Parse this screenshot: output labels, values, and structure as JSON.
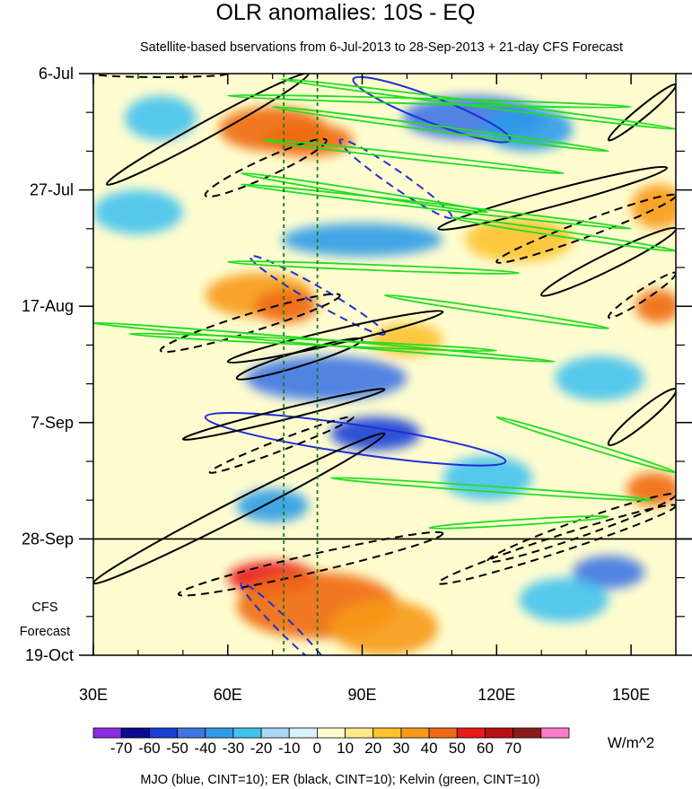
{
  "chart_data": {
    "type": "heatmap",
    "title": "OLR anomalies: 10S - EQ",
    "subtitle": "Satellite-based bservations from 6-Jul-2013 to 28-Sep-2013 + 21-day CFS Forecast",
    "x_axis": {
      "range": [
        30,
        160
      ],
      "ticks": [
        {
          "value": 30,
          "label": "30E"
        },
        {
          "value": 60,
          "label": "60E"
        },
        {
          "value": 90,
          "label": "90E"
        },
        {
          "value": 120,
          "label": "120E"
        },
        {
          "value": 150,
          "label": "150E"
        }
      ]
    },
    "y_axis": {
      "range_days": [
        0,
        105
      ],
      "ticks": [
        {
          "day": 0,
          "label": "6-Jul"
        },
        {
          "day": 21,
          "label": "27-Jul"
        },
        {
          "day": 42,
          "label": "17-Aug"
        },
        {
          "day": 63,
          "label": "7-Sep"
        },
        {
          "day": 84,
          "label": "28-Sep"
        },
        {
          "day": 105,
          "label": "19-Oct"
        }
      ]
    },
    "forecast_start_day": 84,
    "forecast_label_line1": "CFS",
    "forecast_label_line2": "Forecast",
    "reference_longitudes": [
      72.5,
      80
    ],
    "colorbar": {
      "labels": [
        "-70",
        "-60",
        "-50",
        "-40",
        "-30",
        "-20",
        "-10",
        "0",
        "10",
        "20",
        "30",
        "40",
        "50",
        "60",
        "70"
      ],
      "colors": [
        "#8a2be2",
        "#0b0b8f",
        "#1a3fd6",
        "#3f76e4",
        "#2f9be8",
        "#42c2f0",
        "#a9d9f6",
        "#d8f1fb",
        "#fffdd0",
        "#ffe98a",
        "#fcc22f",
        "#f79a1a",
        "#ef6a12",
        "#e81a1a",
        "#b81010",
        "#8c1a1a",
        "#ff7ac8"
      ],
      "units": "W/m^2"
    },
    "legend_text": "MJO (blue, CINT=10); ER (black, CINT=10); Kelvin (green, CINT=10)",
    "contour_sets": [
      {
        "name": "MJO",
        "color": "#1f2ed8",
        "cint": 10
      },
      {
        "name": "ER",
        "color": "#000000",
        "cint": 10
      },
      {
        "name": "Kelvin",
        "color": "#22dd22",
        "cint": 10
      }
    ],
    "anomaly_features": [
      {
        "lon": 70,
        "day": 10,
        "value": 45,
        "rx": 12,
        "rd": 4
      },
      {
        "lon": 78,
        "day": 12,
        "value": 40,
        "rx": 10,
        "rd": 3
      },
      {
        "lon": 67,
        "day": 40,
        "value": 35,
        "rx": 12,
        "rd": 4
      },
      {
        "lon": 73,
        "day": 42,
        "value": 45,
        "rx": 7,
        "rd": 3
      },
      {
        "lon": 70,
        "day": 91,
        "value": 55,
        "rx": 10,
        "rd": 3
      },
      {
        "lon": 80,
        "day": 96,
        "value": 40,
        "rx": 18,
        "rd": 6
      },
      {
        "lon": 95,
        "day": 100,
        "value": 32,
        "rx": 12,
        "rd": 5
      },
      {
        "lon": 156,
        "day": 24,
        "value": 35,
        "rx": 6,
        "rd": 4
      },
      {
        "lon": 156,
        "day": 42,
        "value": 40,
        "rx": 5,
        "rd": 3
      },
      {
        "lon": 155,
        "day": 75,
        "value": 45,
        "rx": 6,
        "rd": 3
      },
      {
        "lon": 125,
        "day": 30,
        "value": 25,
        "rx": 12,
        "rd": 4
      },
      {
        "lon": 100,
        "day": 48,
        "value": 25,
        "rx": 8,
        "rd": 3
      },
      {
        "lon": 90,
        "day": 30,
        "value": -40,
        "rx": 18,
        "rd": 3
      },
      {
        "lon": 115,
        "day": 8,
        "value": -45,
        "rx": 16,
        "rd": 4
      },
      {
        "lon": 127,
        "day": 10,
        "value": -40,
        "rx": 10,
        "rd": 4
      },
      {
        "lon": 82,
        "day": 55,
        "value": -45,
        "rx": 18,
        "rd": 4
      },
      {
        "lon": 93,
        "day": 65,
        "value": -55,
        "rx": 10,
        "rd": 3
      },
      {
        "lon": 70,
        "day": 78,
        "value": -40,
        "rx": 8,
        "rd": 3
      },
      {
        "lon": 145,
        "day": 90,
        "value": -45,
        "rx": 8,
        "rd": 3
      },
      {
        "lon": 135,
        "day": 95,
        "value": -30,
        "rx": 10,
        "rd": 4
      },
      {
        "lon": 118,
        "day": 73,
        "value": -30,
        "rx": 10,
        "rd": 4
      },
      {
        "lon": 45,
        "day": 8,
        "value": -25,
        "rx": 8,
        "rd": 4
      },
      {
        "lon": 40,
        "day": 25,
        "value": -30,
        "rx": 10,
        "rd": 4
      },
      {
        "lon": 143,
        "day": 55,
        "value": -25,
        "rx": 10,
        "rd": 4
      }
    ]
  }
}
